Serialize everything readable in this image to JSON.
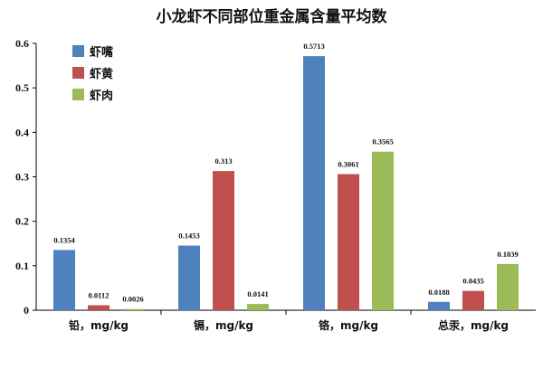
{
  "chart_data": {
    "type": "bar",
    "title": "小龙虾不同部位重金属含量平均数",
    "categories": [
      "铅，mg/kg",
      "镉，mg/kg",
      "铬，mg/kg",
      "总汞，mg/kg"
    ],
    "series": [
      {
        "name": "虾嘴",
        "color": "#4f81bd",
        "values": [
          0.1354,
          0.1453,
          0.5713,
          0.0188
        ],
        "labels": [
          "0.1354",
          "0.1453",
          "0.5713",
          "0.0188"
        ]
      },
      {
        "name": "虾黄",
        "color": "#c0504d",
        "values": [
          0.0112,
          0.313,
          0.3061,
          0.0435
        ],
        "labels": [
          "0.0112",
          "0.313",
          "0.3061",
          "0.0435"
        ]
      },
      {
        "name": "虾肉",
        "color": "#9bbb59",
        "values": [
          0.0026,
          0.0141,
          0.3565,
          0.1039
        ],
        "labels": [
          "0.0026",
          "0.0141",
          "0.3565",
          "0.1039"
        ]
      }
    ],
    "ylim": [
      0,
      0.6
    ],
    "yticks": [
      "0",
      "0.1",
      "0.2",
      "0.3",
      "0.4",
      "0.5",
      "0.6"
    ],
    "grid": false,
    "legend": "top-left"
  }
}
